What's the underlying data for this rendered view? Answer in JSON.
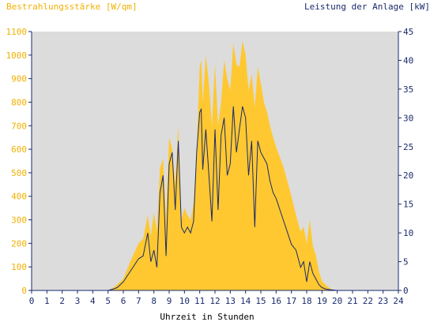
{
  "chart_data": {
    "type": "area",
    "left_axis_title": "Bestrahlungsstärke [W/qm]",
    "right_axis_title": "Leistung der Anlage [kW]",
    "xlabel": "Uhrzeit in Stunden",
    "xlim": [
      0,
      24
    ],
    "y_left_lim": [
      0,
      1100
    ],
    "y_right_lim": [
      0,
      45
    ],
    "x_ticks": [
      "0",
      "1",
      "2",
      "3",
      "4",
      "5",
      "6",
      "7",
      "8",
      "9",
      "10",
      "11",
      "12",
      "13",
      "14",
      "15",
      "16",
      "17",
      "18",
      "19",
      "20",
      "21",
      "22",
      "23",
      "24"
    ],
    "y_left_ticks": [
      "0",
      "100",
      "200",
      "300",
      "400",
      "500",
      "600",
      "700",
      "800",
      "900",
      "1000",
      "1100"
    ],
    "y_right_ticks": [
      "0",
      "5",
      "10",
      "15",
      "20",
      "25",
      "30",
      "35",
      "40",
      "45"
    ],
    "grid": false,
    "colors": {
      "plot_background": "#dcdcdc",
      "irradiance_fill": "#ffc830",
      "power_line": "#1a2a6c",
      "left_axis_text": "#f0b000",
      "right_axis_text": "#1a2a6c",
      "axis_line": "#1a2a6c"
    },
    "series": [
      {
        "axis": "left",
        "style": "area",
        "x": [
          0,
          5,
          5.3,
          5.6,
          6,
          6.5,
          7,
          7.3,
          7.6,
          7.8,
          8,
          8.2,
          8.4,
          8.6,
          8.8,
          9,
          9.2,
          9.4,
          9.6,
          9.8,
          10,
          10.2,
          10.4,
          10.6,
          10.8,
          11,
          11.1,
          11.2,
          11.4,
          11.6,
          11.8,
          12,
          12.2,
          12.4,
          12.6,
          12.8,
          13,
          13.2,
          13.4,
          13.6,
          13.8,
          14,
          14.2,
          14.4,
          14.6,
          14.8,
          15,
          15.2,
          15.4,
          15.6,
          15.8,
          16,
          16.5,
          17,
          17.3,
          17.6,
          17.8,
          18,
          18.2,
          18.4,
          18.6,
          18.8,
          19,
          19.3,
          19.6,
          20,
          24
        ],
        "values": [
          0,
          0,
          10,
          25,
          50,
          130,
          200,
          220,
          320,
          230,
          330,
          250,
          520,
          560,
          300,
          650,
          600,
          450,
          700,
          300,
          350,
          320,
          300,
          370,
          600,
          950,
          980,
          800,
          1000,
          880,
          700,
          960,
          700,
          800,
          980,
          900,
          850,
          1050,
          960,
          950,
          1060,
          1000,
          850,
          920,
          780,
          950,
          880,
          800,
          760,
          700,
          650,
          610,
          520,
          400,
          320,
          250,
          270,
          200,
          300,
          190,
          150,
          80,
          40,
          20,
          5,
          0,
          0
        ]
      },
      {
        "axis": "right",
        "style": "line",
        "x": [
          0,
          5,
          5.3,
          5.6,
          6,
          6.5,
          7,
          7.3,
          7.6,
          7.8,
          8,
          8.2,
          8.4,
          8.6,
          8.8,
          9,
          9.2,
          9.4,
          9.6,
          9.8,
          10,
          10.2,
          10.4,
          10.6,
          10.8,
          11,
          11.1,
          11.2,
          11.4,
          11.6,
          11.8,
          12,
          12.2,
          12.4,
          12.6,
          12.8,
          13,
          13.2,
          13.4,
          13.6,
          13.8,
          14,
          14.2,
          14.4,
          14.6,
          14.8,
          15,
          15.2,
          15.4,
          15.6,
          15.8,
          16,
          16.5,
          17,
          17.3,
          17.6,
          17.8,
          18,
          18.2,
          18.4,
          18.6,
          18.8,
          19,
          19.3,
          19.6,
          20,
          24
        ],
        "values": [
          0,
          0,
          0.2,
          0.5,
          1.5,
          3.5,
          5.5,
          6,
          10,
          5,
          7,
          4,
          17,
          20,
          6,
          22,
          24,
          14,
          26,
          11,
          10,
          11,
          10,
          12,
          24,
          31,
          31.5,
          21,
          28,
          20,
          12,
          28,
          14,
          27,
          30,
          20,
          22,
          32,
          24,
          28,
          32,
          30,
          20,
          26,
          11,
          26,
          24,
          23,
          22,
          19,
          17,
          16,
          12,
          8,
          7,
          4,
          5,
          1.5,
          5,
          3,
          2,
          1,
          0.5,
          0.2,
          0.1,
          0,
          0
        ]
      }
    ]
  }
}
